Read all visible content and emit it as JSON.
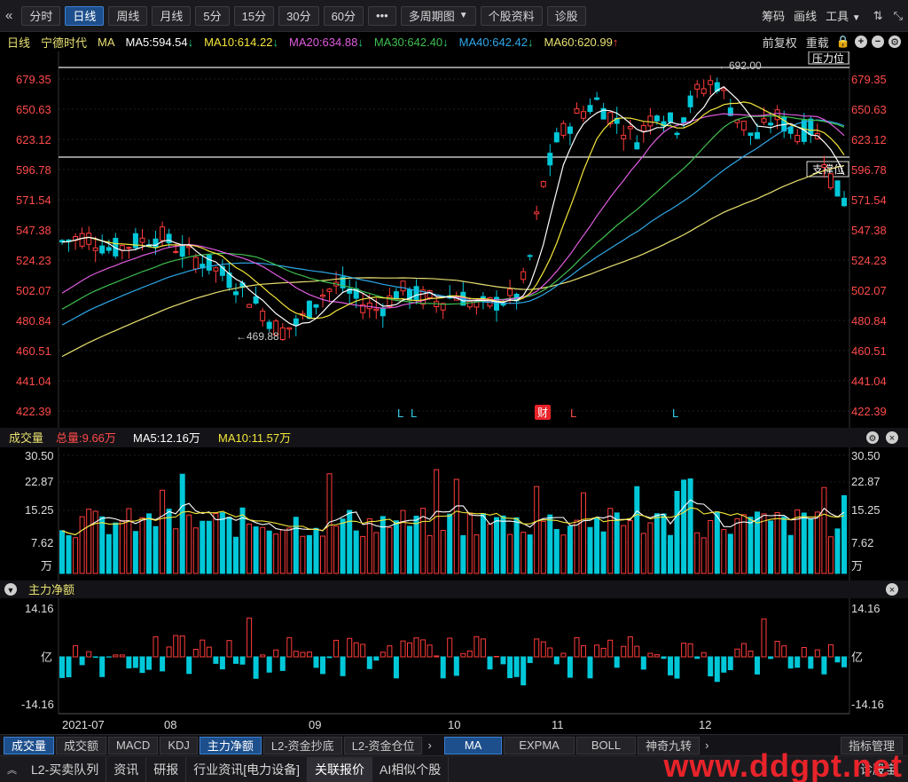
{
  "toolbar": {
    "back_icon": "«",
    "periods": [
      "分时",
      "日线",
      "周线",
      "月线",
      "5分",
      "15分",
      "30分",
      "60分"
    ],
    "active_period": "日线",
    "more": "•••",
    "multi_period": "多周期图",
    "stock_info": "个股资料",
    "diagnose": "诊股",
    "chips": "筹码",
    "draw": "画线",
    "tools": "工具",
    "right_icons": [
      "swap-icon",
      "expand-icon"
    ]
  },
  "ma_line": {
    "period": "日线",
    "stock_name": "宁德时代",
    "indicator": "MA",
    "items": [
      {
        "label": "MA5:594.54",
        "dir": "down",
        "color": "#ffffff"
      },
      {
        "label": "MA10:614.22",
        "dir": "down",
        "color": "#f5e63a"
      },
      {
        "label": "MA20:634.88",
        "dir": "down",
        "color": "#e05ce0"
      },
      {
        "label": "MA30:642.40",
        "dir": "down",
        "color": "#3fbf4f"
      },
      {
        "label": "MA40:642.42",
        "dir": "down",
        "color": "#2ea8e8"
      },
      {
        "label": "MA60:620.99",
        "dir": "up",
        "color": "#e8e070"
      }
    ],
    "adjust": "前复权",
    "overlay": "重载"
  },
  "price_panel": {
    "y_labels": [
      "679.35",
      "650.63",
      "623.12",
      "596.78",
      "571.54",
      "547.38",
      "524.23",
      "502.07",
      "480.84",
      "460.51",
      "441.04",
      "422.39"
    ],
    "resistance_label": "压力位",
    "support_label": "支撑位",
    "high_label": "←692.00",
    "low_label": "←469.88",
    "markers": [
      "L",
      "L",
      "财",
      "L",
      "L"
    ]
  },
  "volume_panel": {
    "title": "成交量",
    "total": "总量:9.66万",
    "ma5": "MA5:12.16万",
    "ma10": "MA10:11.57万",
    "y_labels": [
      "30.50",
      "22.87",
      "15.25",
      "7.62",
      "万"
    ]
  },
  "flow_panel": {
    "title": "主力净额",
    "y_labels": [
      "14.16",
      "亿",
      "-14.16"
    ]
  },
  "x_axis": [
    "2021-07",
    "08",
    "09",
    "10",
    "11",
    "12"
  ],
  "indicator_tabs": {
    "left": [
      "成交量",
      "成交额",
      "MACD",
      "KDJ",
      "主力净额",
      "L2-资金抄底",
      "L2-资金仓位"
    ],
    "active_left": [
      "成交量",
      "主力净额"
    ],
    "right": [
      "MA",
      "EXPMA",
      "BOLL",
      "神奇九转"
    ],
    "active_right": "MA",
    "manage": "指标管理"
  },
  "bottom_tabs": [
    "L2-买卖队列",
    "资讯",
    "研报",
    "行业资讯[电力设备]",
    "关联报价",
    "AI相似个股"
  ],
  "active_bottom": "关联报价",
  "bottom_right": "诊股宝",
  "watermark": "www.ddgpt.net",
  "colors": {
    "up": "#ff3b3b",
    "down": "#00c8d8",
    "axis_text": "#ff4a4a"
  }
}
